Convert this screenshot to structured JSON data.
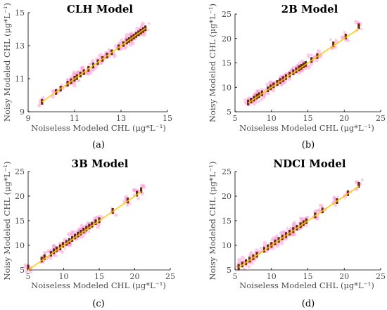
{
  "chart_data": [
    {
      "type": "scatter",
      "title": "CLH Model",
      "xlabel": "Noiseless Modeled CHL (μg*L⁻¹)",
      "ylabel": "Noisy Modeled CHL (μg*L⁻¹)",
      "panel_label": "(a)",
      "xlim": [
        9,
        15
      ],
      "ylim": [
        9,
        15
      ],
      "xticks": [
        9,
        11,
        13,
        15
      ],
      "yticks": [
        9,
        11,
        13,
        15
      ],
      "x": [
        9.6,
        10.2,
        10.4,
        10.7,
        10.85,
        11.0,
        11.1,
        11.25,
        11.4,
        11.6,
        11.8,
        12.0,
        12.2,
        12.4,
        12.6,
        12.9,
        13.1,
        13.25,
        13.35,
        13.45,
        13.55,
        13.65,
        13.75,
        13.85,
        13.95,
        14.05
      ],
      "y": [
        9.6,
        10.2,
        10.4,
        10.7,
        10.85,
        11.0,
        11.1,
        11.25,
        11.4,
        11.6,
        11.8,
        12.0,
        12.2,
        12.4,
        12.6,
        12.9,
        13.1,
        13.25,
        13.35,
        13.45,
        13.55,
        13.65,
        13.75,
        13.85,
        13.95,
        14.05
      ]
    },
    {
      "type": "scatter",
      "title": "2B Model",
      "xlabel": "Noiseless Modeled CHL (μg*L⁻¹)",
      "ylabel": "Noisy Modeled CHL (μg*L⁻¹)",
      "panel_label": "(b)",
      "xlim": [
        5,
        25
      ],
      "ylim": [
        5,
        25
      ],
      "xticks": [
        5,
        10,
        15,
        20,
        25
      ],
      "yticks": [
        5,
        10,
        15,
        20,
        25
      ],
      "x": [
        6.8,
        7.2,
        7.6,
        8.0,
        8.3,
        8.7,
        9.5,
        9.9,
        10.3,
        10.8,
        11.2,
        11.6,
        12.0,
        12.5,
        13.0,
        13.4,
        13.8,
        14.1,
        14.4,
        14.7,
        15.5,
        16.3,
        18.5,
        20.2,
        22.0
      ],
      "y": [
        6.9,
        7.3,
        7.7,
        8.1,
        8.4,
        8.8,
        9.6,
        10.0,
        10.4,
        10.9,
        11.3,
        11.7,
        12.1,
        12.6,
        13.1,
        13.5,
        13.9,
        14.2,
        14.5,
        14.8,
        15.6,
        16.4,
        18.8,
        20.4,
        22.5
      ]
    },
    {
      "type": "scatter",
      "title": "3B Model",
      "xlabel": "Noiseless Modeled CHL (μg*L⁻¹)",
      "ylabel": "Noisy Modeled CHL (μg*L⁻¹)",
      "panel_label": "(c)",
      "xlim": [
        5,
        25
      ],
      "ylim": [
        5,
        25
      ],
      "xticks": [
        5,
        10,
        15,
        20,
        25
      ],
      "yticks": [
        5,
        10,
        15,
        20,
        25
      ],
      "x": [
        5.0,
        6.9,
        7.3,
        8.2,
        8.6,
        9.0,
        9.5,
        9.9,
        10.4,
        10.8,
        11.2,
        11.6,
        12.0,
        12.4,
        12.8,
        13.2,
        13.6,
        14.0,
        14.5,
        15.0,
        16.9,
        19.0,
        20.3,
        20.9
      ],
      "y": [
        5.5,
        7.1,
        7.6,
        8.3,
        8.8,
        9.2,
        9.6,
        10.1,
        10.5,
        10.9,
        11.3,
        11.8,
        12.2,
        12.6,
        13.0,
        13.4,
        13.8,
        14.2,
        14.7,
        15.1,
        17.0,
        19.1,
        20.5,
        21.2
      ]
    },
    {
      "type": "scatter",
      "title": "NDCI Model",
      "xlabel": "Noiseless Modeled CHL (μg*L⁻¹)",
      "ylabel": "Noisy Modeled CHL (μg*L⁻¹)",
      "panel_label": "(d)",
      "xlim": [
        5,
        25
      ],
      "ylim": [
        5,
        25
      ],
      "xticks": [
        5,
        10,
        15,
        20,
        25
      ],
      "yticks": [
        5,
        10,
        15,
        20,
        25
      ],
      "x": [
        5.5,
        6.0,
        6.5,
        7.0,
        7.5,
        8.0,
        9.0,
        9.5,
        10.0,
        10.5,
        11.0,
        11.5,
        12.0,
        12.5,
        13.0,
        13.5,
        14.0,
        14.4,
        14.8,
        16.0,
        17.0,
        19.0,
        20.5,
        22.0
      ],
      "y": [
        5.6,
        6.1,
        6.6,
        7.1,
        7.6,
        8.1,
        9.1,
        9.6,
        10.1,
        10.6,
        11.1,
        11.6,
        12.1,
        12.6,
        13.1,
        13.6,
        14.1,
        14.5,
        14.9,
        16.1,
        17.1,
        19.0,
        20.6,
        22.3
      ]
    }
  ],
  "style": {
    "noise_color": "#ff9ed8",
    "point_color": "#000000",
    "point_fill": "#6b2a00",
    "line_color": "#ffc800"
  }
}
